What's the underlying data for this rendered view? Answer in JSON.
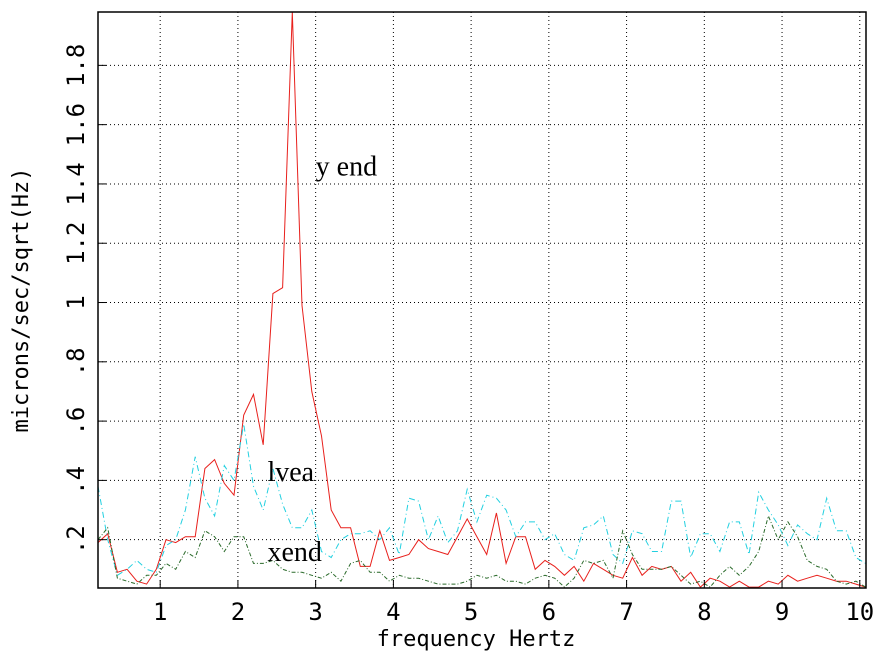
{
  "chart_data": {
    "type": "line",
    "xlabel": "frequency Hertz",
    "ylabel": "microns/sec/sqrt(Hz)",
    "x": [
      0.2,
      0.325,
      0.45,
      0.575,
      0.7,
      0.825,
      0.95,
      1.075,
      1.2,
      1.325,
      1.45,
      1.575,
      1.7,
      1.825,
      1.95,
      2.075,
      2.2,
      2.325,
      2.45,
      2.575,
      2.7,
      2.825,
      2.95,
      3.075,
      3.2,
      3.325,
      3.45,
      3.575,
      3.7,
      3.825,
      3.95,
      4.075,
      4.2,
      4.325,
      4.45,
      4.575,
      4.7,
      4.825,
      4.95,
      5.075,
      5.2,
      5.325,
      5.45,
      5.575,
      5.7,
      5.825,
      5.95,
      6.075,
      6.2,
      6.325,
      6.45,
      6.575,
      6.7,
      6.825,
      6.95,
      7.075,
      7.2,
      7.325,
      7.45,
      7.575,
      7.7,
      7.825,
      7.95,
      8.075,
      8.2,
      8.325,
      8.45,
      8.575,
      8.7,
      8.825,
      8.95,
      9.075,
      9.2,
      9.325,
      9.45,
      9.575,
      9.7,
      9.825,
      9.95,
      10.075
    ],
    "series": [
      {
        "name": "y end",
        "color": "#e8201c",
        "dash": "none",
        "values": [
          0.19,
          0.22,
          0.09,
          0.1,
          0.06,
          0.05,
          0.1,
          0.2,
          0.19,
          0.21,
          0.21,
          0.44,
          0.47,
          0.39,
          0.35,
          0.62,
          0.69,
          0.52,
          1.03,
          1.05,
          1.98,
          0.99,
          0.7,
          0.55,
          0.3,
          0.24,
          0.24,
          0.11,
          0.11,
          0.23,
          0.13,
          0.14,
          0.15,
          0.2,
          0.17,
          0.16,
          0.15,
          0.21,
          0.27,
          0.21,
          0.15,
          0.29,
          0.12,
          0.21,
          0.21,
          0.1,
          0.13,
          0.11,
          0.08,
          0.11,
          0.06,
          0.12,
          0.1,
          0.08,
          0.07,
          0.14,
          0.08,
          0.11,
          0.1,
          0.11,
          0.06,
          0.09,
          0.04,
          0.07,
          0.06,
          0.04,
          0.06,
          0.04,
          0.04,
          0.06,
          0.05,
          0.08,
          0.06,
          0.07,
          0.08,
          0.07,
          0.06,
          0.06,
          0.05,
          0.04
        ],
        "label_at": [
          3,
          1.45
        ]
      },
      {
        "name": "lvea",
        "color": "#22d0e0",
        "dash": "6 3 1 3",
        "values": [
          0.38,
          0.2,
          0.08,
          0.1,
          0.13,
          0.1,
          0.09,
          0.18,
          0.2,
          0.3,
          0.48,
          0.34,
          0.28,
          0.45,
          0.4,
          0.59,
          0.38,
          0.3,
          0.44,
          0.32,
          0.24,
          0.24,
          0.3,
          0.16,
          0.14,
          0.2,
          0.22,
          0.22,
          0.23,
          0.2,
          0.24,
          0.15,
          0.34,
          0.33,
          0.2,
          0.28,
          0.19,
          0.23,
          0.37,
          0.26,
          0.35,
          0.34,
          0.3,
          0.21,
          0.26,
          0.26,
          0.2,
          0.22,
          0.15,
          0.13,
          0.24,
          0.25,
          0.28,
          0.15,
          0.12,
          0.23,
          0.22,
          0.16,
          0.16,
          0.33,
          0.33,
          0.14,
          0.22,
          0.22,
          0.16,
          0.26,
          0.26,
          0.15,
          0.36,
          0.3,
          0.25,
          0.18,
          0.25,
          0.22,
          0.2,
          0.34,
          0.23,
          0.23,
          0.14,
          0.12
        ],
        "label_at": [
          2.38,
          0.42
        ]
      },
      {
        "name": "xend",
        "color": "#2a6a2a",
        "dash": "4 2 1 2",
        "values": [
          0.2,
          0.24,
          0.07,
          0.06,
          0.05,
          0.08,
          0.08,
          0.12,
          0.1,
          0.16,
          0.14,
          0.23,
          0.21,
          0.16,
          0.21,
          0.21,
          0.12,
          0.12,
          0.13,
          0.1,
          0.09,
          0.09,
          0.08,
          0.07,
          0.09,
          0.06,
          0.12,
          0.13,
          0.09,
          0.09,
          0.06,
          0.08,
          0.07,
          0.07,
          0.06,
          0.05,
          0.05,
          0.05,
          0.06,
          0.08,
          0.07,
          0.08,
          0.06,
          0.06,
          0.05,
          0.07,
          0.08,
          0.07,
          0.04,
          0.07,
          0.13,
          0.12,
          0.13,
          0.07,
          0.23,
          0.15,
          0.1,
          0.1,
          0.1,
          0.11,
          0.08,
          0.05,
          0.06,
          0.04,
          0.08,
          0.11,
          0.08,
          0.11,
          0.16,
          0.28,
          0.2,
          0.26,
          0.21,
          0.13,
          0.11,
          0.1,
          0.06,
          0.05,
          0.06,
          0.04
        ],
        "label_at": [
          2.38,
          0.15
        ]
      }
    ],
    "xlim": [
      0.2,
      10.08
    ],
    "ylim": [
      0.037,
      1.98
    ],
    "xticks": [
      1,
      2,
      3,
      4,
      5,
      6,
      7,
      8,
      9,
      10
    ],
    "yticks": [
      {
        "value": 0.2,
        "label": ".2"
      },
      {
        "value": 0.4,
        "label": ".4"
      },
      {
        "value": 0.6,
        "label": ".6"
      },
      {
        "value": 0.8,
        "label": ".8"
      },
      1,
      1.2,
      1.4,
      1.6,
      1.8
    ],
    "grid": true
  }
}
